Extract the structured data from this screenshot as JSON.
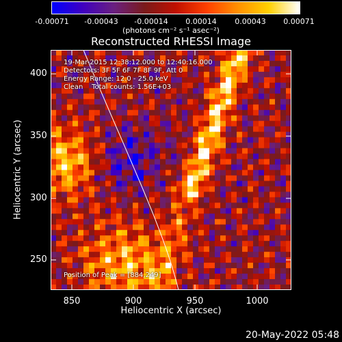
{
  "colorbar": {
    "ticks": [
      "-0.00071",
      "-0.00043",
      "-0.00014",
      "0.00014",
      "0.00043",
      "0.00071"
    ],
    "units": "(photons cm⁻² s⁻¹ asec⁻²)",
    "colors": [
      "#0000ff",
      "#4000c0",
      "#6a2080",
      "#7a1a1a",
      "#c01000",
      "#ff4000",
      "#ff9000",
      "#ffd000",
      "#ffffff"
    ]
  },
  "title": "Reconstructed RHESSI Image",
  "info": {
    "time": "19-Mar-2015 12:38:12.000 to 12:40:16.000",
    "detectors": "Detectors: 3F 5F 6F 7F 8F 9F, Att 0",
    "energy": "Energy Range: 12.0 - 25.0 keV",
    "clean": "Clean    Total counts: 1.56E+03",
    "peak": "Position of Peak = [884,249]"
  },
  "axes": {
    "xlabel": "Heliocentric X (arcsec)",
    "ylabel": "Heliocentric Y (arcsec)",
    "xticks": [
      "850",
      "900",
      "950",
      "1000"
    ],
    "yticks": [
      "400",
      "350",
      "300",
      "250"
    ]
  },
  "footer": "20-May-2022 05:48"
}
